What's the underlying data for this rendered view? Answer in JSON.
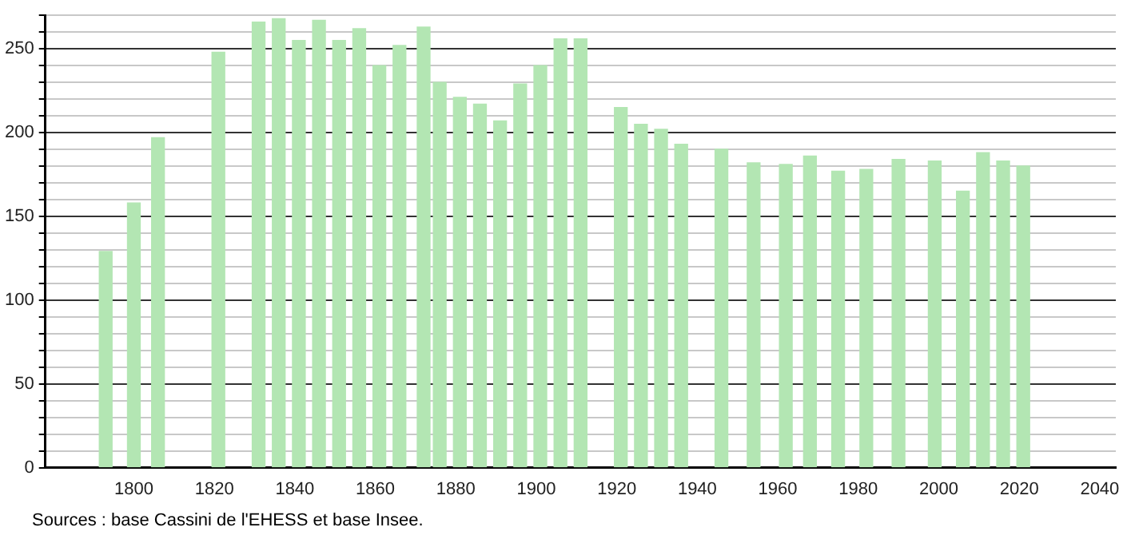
{
  "chart_data": {
    "type": "bar",
    "color": "#b3e6b3",
    "x": [
      1793,
      1800,
      1806,
      1821,
      1831,
      1836,
      1841,
      1846,
      1851,
      1856,
      1861,
      1866,
      1872,
      1876,
      1881,
      1886,
      1891,
      1896,
      1901,
      1906,
      1911,
      1921,
      1926,
      1931,
      1936,
      1946,
      1954,
      1962,
      1968,
      1975,
      1982,
      1990,
      1999,
      2006,
      2011,
      2016,
      2021
    ],
    "values": [
      129,
      158,
      197,
      248,
      266,
      268,
      255,
      267,
      255,
      262,
      240,
      252,
      263,
      230,
      221,
      217,
      207,
      229,
      240,
      256,
      256,
      215,
      205,
      202,
      193,
      190,
      182,
      181,
      186,
      177,
      178,
      184,
      183,
      165,
      188,
      183,
      180
    ],
    "xlim": [
      1778,
      2044
    ],
    "xticks": [
      1800,
      1820,
      1840,
      1860,
      1880,
      1900,
      1920,
      1940,
      1960,
      1980,
      2000,
      2020,
      2040
    ],
    "ylim": [
      0,
      270
    ],
    "yticks": [
      0,
      {
        "value": 10,
        "label": null
      },
      {
        "value": 20,
        "label": null
      },
      {
        "value": 30,
        "label": null
      },
      {
        "value": 40,
        "label": null
      },
      50,
      {
        "value": 60,
        "label": null
      },
      {
        "value": 70,
        "label": null
      },
      {
        "value": 80,
        "label": null
      },
      {
        "value": 90,
        "label": null
      },
      100,
      {
        "value": 110,
        "label": null
      },
      {
        "value": 120,
        "label": null
      },
      {
        "value": 130,
        "label": null
      },
      {
        "value": 140,
        "label": null
      },
      150,
      {
        "value": 160,
        "label": null
      },
      {
        "value": 170,
        "label": null
      },
      {
        "value": 180,
        "label": null
      },
      {
        "value": 190,
        "label": null
      },
      200,
      {
        "value": 210,
        "label": null
      },
      {
        "value": 220,
        "label": null
      },
      {
        "value": 230,
        "label": null
      },
      {
        "value": 240,
        "label": null
      },
      250,
      {
        "value": 260,
        "label": null
      },
      {
        "value": 270,
        "label": null
      }
    ],
    "grid": "y",
    "annotations": [
      "Sources : base Cassini de l'EHESS et base Insee."
    ]
  }
}
